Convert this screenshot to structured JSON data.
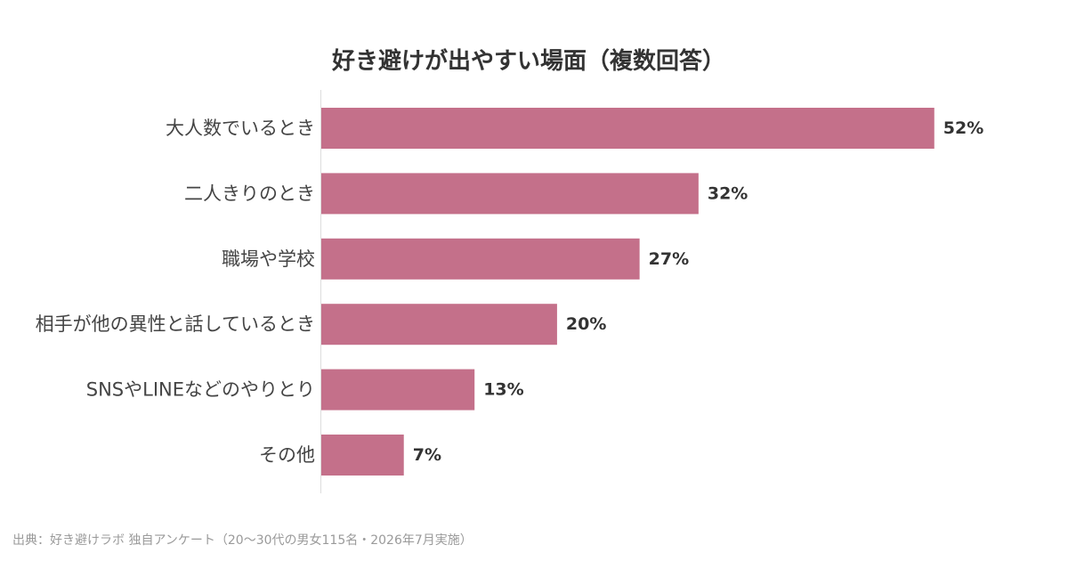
{
  "chart_data": {
    "type": "bar",
    "orientation": "horizontal",
    "title": "好き避けが出やすい場面（複数回答）",
    "categories": [
      "大人数でいるとき",
      "二人きりのとき",
      "職場や学校",
      "相手が他の異性と話しているとき",
      "SNSやLINEなどのやりとり",
      "その他"
    ],
    "values": [
      52,
      32,
      27,
      20,
      13,
      7
    ],
    "value_labels": [
      "52%",
      "32%",
      "27%",
      "20%",
      "13%",
      "7%"
    ],
    "unit": "%",
    "xlim": [
      0,
      57
    ],
    "grid": false,
    "bar_color": "#c4708a"
  },
  "source": "出典：好き避けラボ 独自アンケート（20〜30代の男女115名・2026年7月実施）"
}
